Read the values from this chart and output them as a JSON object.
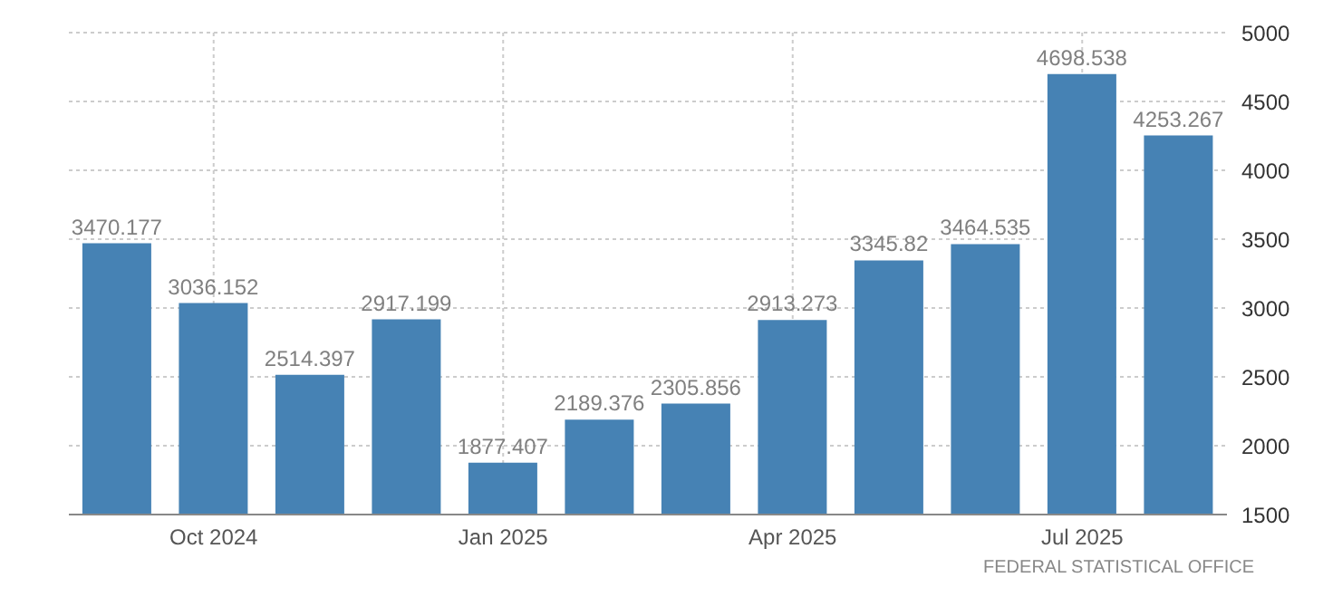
{
  "chart_data": {
    "type": "bar",
    "categories": [
      null,
      "Oct 2024",
      null,
      null,
      "Jan 2025",
      null,
      null,
      "Apr 2025",
      null,
      null,
      "Jul 2025",
      null
    ],
    "values": [
      3470.177,
      3036.152,
      2514.397,
      2917.199,
      1877.407,
      2189.376,
      2305.856,
      2913.273,
      3345.82,
      3464.535,
      4698.538,
      4253.267
    ],
    "color": "#4682b4",
    "ylim": [
      1500,
      5000
    ],
    "yticks": [
      1500,
      2000,
      2500,
      3000,
      3500,
      4000,
      4500,
      5000
    ],
    "grid": true,
    "data_labels": true,
    "annotations": [
      "FEDERAL STATISTICAL OFFICE"
    ]
  }
}
